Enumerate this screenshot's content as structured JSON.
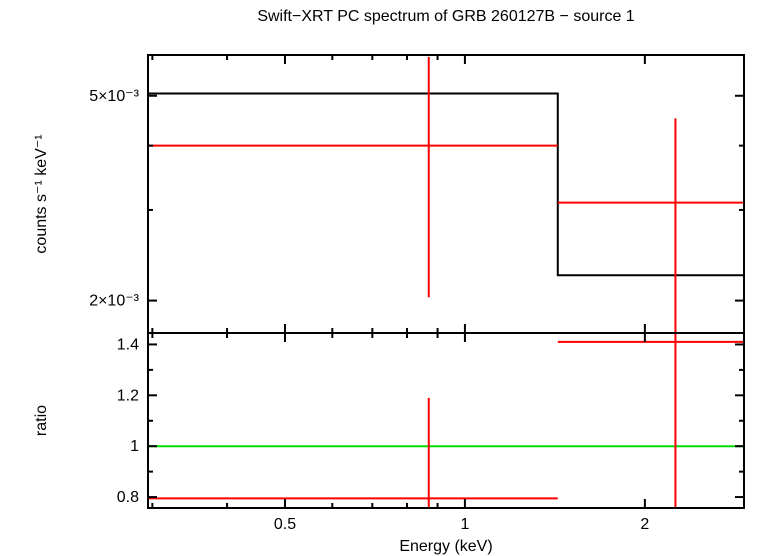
{
  "chart_data": {
    "type": "line",
    "subtype": "stepped-model-with-errorbars",
    "title": "Swift−XRT PC spectrum of GRB 260127B − source 1",
    "xlabel": "Energy (keV)",
    "xscale": "log",
    "xlim": [
      0.295,
      2.93
    ],
    "x_major_ticks": [
      0.5,
      1,
      2
    ],
    "x_major_labels": [
      "0.5",
      "1",
      "2"
    ],
    "x_minor_ticks": [
      0.3,
      0.4,
      0.6,
      0.7,
      0.8,
      0.9
    ],
    "colors": {
      "frame": "#000000",
      "model": "#000000",
      "data": "#ff0000",
      "reference": "#00dd00"
    },
    "panels": [
      {
        "name": "spectrum",
        "ylabel": "counts s⁻¹ keV⁻¹",
        "yscale": "log",
        "ylim": [
          0.00173,
          0.006
        ],
        "y_major_ticks": [
          0.002,
          0.005
        ],
        "y_major_labels": [
          "2×10⁻³",
          "5×10⁻³"
        ],
        "y_minor_ticks": [
          0.003,
          0.004
        ],
        "model": {
          "color": "#000000",
          "steps": [
            {
              "x_start": 0.295,
              "x_end": 1.43,
              "y": 0.00505
            },
            {
              "x_start": 1.43,
              "x_end": 2.93,
              "y": 0.00224
            }
          ]
        },
        "data": {
          "color": "#ff0000",
          "points": [
            {
              "x": 0.87,
              "x_lo": 0.295,
              "x_hi": 1.43,
              "y": 0.004,
              "y_lo": 0.00203,
              "y_hi": 0.00595
            },
            {
              "x": 2.25,
              "x_lo": 1.43,
              "x_hi": 2.93,
              "y": 0.0031,
              "y_lo": 0.00173,
              "y_hi": 0.00452
            }
          ]
        }
      },
      {
        "name": "ratio",
        "ylabel": "ratio",
        "yscale": "linear",
        "ylim": [
          0.757,
          1.445
        ],
        "y_major_ticks": [
          0.8,
          1.0,
          1.2,
          1.4
        ],
        "y_major_labels": [
          "0.8",
          "1",
          "1.2",
          "1.4"
        ],
        "y_minor_ticks": [
          0.9,
          1.1,
          1.3
        ],
        "reference_line": {
          "y": 1.0,
          "color": "#00dd00"
        },
        "data": {
          "color": "#ff0000",
          "points": [
            {
              "x": 0.87,
              "x_lo": 0.295,
              "x_hi": 1.43,
              "y": 0.795,
              "y_lo": 0.757,
              "y_hi": 1.19
            },
            {
              "x": 2.25,
              "x_lo": 1.43,
              "x_hi": 2.93,
              "y": 1.41,
              "y_lo": 0.757,
              "y_hi": 1.445
            }
          ]
        }
      }
    ]
  }
}
